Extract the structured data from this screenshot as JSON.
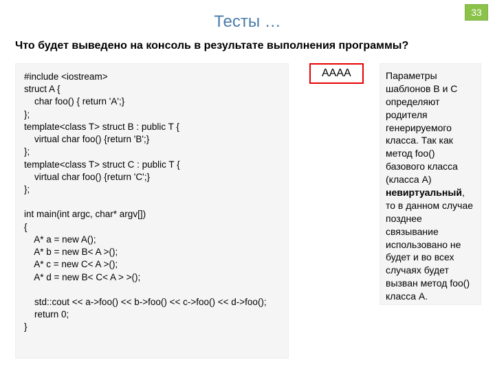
{
  "page_number": "33",
  "title": "Тесты …",
  "question": "Что будет выведено на консоль в результате выполнения программы?",
  "code": "#include <iostream>\nstruct A {\n    char foo() { return 'A';}\n};\ntemplate<class T> struct B : public T {\n    virtual char foo() {return 'B';}\n};\ntemplate<class T> struct C : public T {\n    virtual char foo() {return 'C';}\n};\n\nint main(int argc, char* argv[])\n{\n    A* a = new A();\n    A* b = new B< A >();\n    A* c = new C< A >();\n    A* d = new B< C< A > >();\n\n    std::cout << a->foo() << b->foo() << c->foo() << d->foo();\n    return 0;\n}",
  "answer": "AAAA",
  "explain_before_bold": "Параметры шаблонов B и C определяют родителя генерируемого класса.\nТак как метод foo() базового класса (класса А) ",
  "explain_bold": "невиртуальный",
  "explain_after_bold": ", то в данном случае позднее связывание использовано не будет и во всех случаях будет вызван метод foo() класса A.",
  "colors": {
    "title_color": "#4a7ca8",
    "page_badge_bg": "#8bc34a",
    "page_badge_fg": "#ffffff",
    "answer_border": "#e60000",
    "panel_bg": "#f5f5f5"
  }
}
